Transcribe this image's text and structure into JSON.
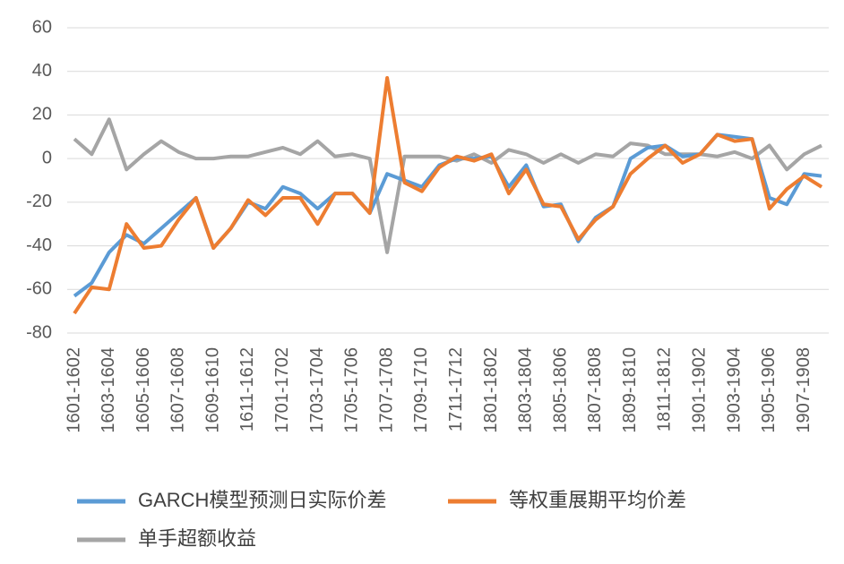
{
  "chart_data": {
    "type": "line",
    "categories": [
      "1601-1602",
      null,
      "1603-1604",
      null,
      "1605-1606",
      null,
      "1607-1608",
      null,
      "1609-1610",
      null,
      "1611-1612",
      null,
      "1701-1702",
      null,
      "1703-1704",
      null,
      "1705-1706",
      null,
      "1707-1708",
      null,
      "1709-1710",
      null,
      "1711-1712",
      null,
      "1801-1802",
      null,
      "1803-1804",
      null,
      "1805-1806",
      null,
      "1807-1808",
      null,
      "1809-1810",
      null,
      "1811-1812",
      null,
      "1901-1902",
      null,
      "1903-1904",
      null,
      "1905-1906",
      null,
      "1907-1908",
      null
    ],
    "series": [
      {
        "name": "GARCH模型预测日实际价差",
        "color": "#5b9bd5",
        "values": [
          -63,
          -57,
          -43,
          -35,
          -39,
          -32,
          -25,
          -18,
          -41,
          -32,
          -20,
          -23,
          -13,
          -16,
          -23,
          -16,
          -16,
          -25,
          -7,
          -10,
          -13,
          -3,
          0,
          0,
          1,
          -13,
          -3,
          -22,
          -21,
          -38,
          -27,
          -22,
          0,
          5,
          6,
          1,
          2,
          11,
          10,
          9,
          -18,
          -21,
          -7,
          -8
        ]
      },
      {
        "name": "等权重展期平均价差",
        "color": "#ed7d31",
        "values": [
          -71,
          -59,
          -60,
          -30,
          -41,
          -40,
          -28,
          -18,
          -41,
          -32,
          -19,
          -26,
          -18,
          -18,
          -30,
          -16,
          -16,
          -25,
          37,
          -11,
          -15,
          -4,
          1,
          -1,
          2,
          -16,
          -5,
          -21,
          -22,
          -37,
          -28,
          -22,
          -7,
          0,
          6,
          -2,
          2,
          11,
          8,
          9,
          -23,
          -14,
          -8,
          -13
        ]
      },
      {
        "name": "单手超额收益",
        "color": "#a5a5a5",
        "values": [
          9,
          2,
          18,
          -5,
          2,
          8,
          3,
          0,
          0,
          1,
          1,
          3,
          5,
          2,
          8,
          1,
          2,
          0,
          -43,
          1,
          1,
          1,
          -1,
          2,
          -2,
          4,
          2,
          -2,
          2,
          -2,
          2,
          1,
          7,
          6,
          2,
          2,
          2,
          1,
          3,
          0,
          6,
          -5,
          2,
          6
        ]
      }
    ],
    "ylim": [
      -80,
      60
    ],
    "yticks": [
      -80,
      -60,
      -40,
      -20,
      0,
      20,
      40,
      60
    ],
    "grid": true
  }
}
